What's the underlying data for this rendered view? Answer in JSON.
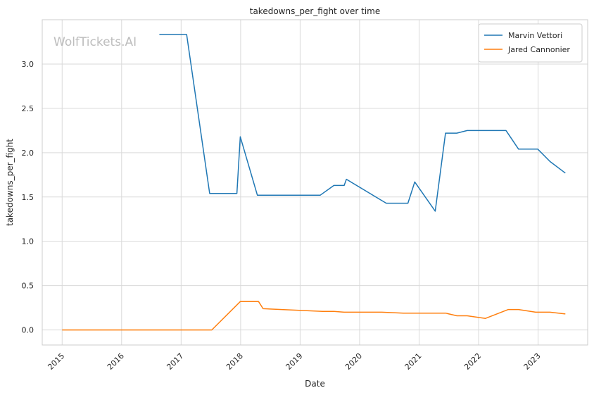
{
  "chart_data": {
    "type": "line",
    "title": "takedowns_per_fight over time",
    "xlabel": "Date",
    "ylabel": "takedowns_per_fight",
    "watermark": "WolfTickets.AI",
    "xlim": [
      "2014-09-01",
      "2023-11-01"
    ],
    "ylim": [
      -0.17,
      3.5
    ],
    "x_ticks": [
      "2015",
      "2016",
      "2017",
      "2018",
      "2019",
      "2020",
      "2021",
      "2022",
      "2023"
    ],
    "y_ticks": [
      "0.0",
      "0.5",
      "1.0",
      "1.5",
      "2.0",
      "2.5",
      "3.0"
    ],
    "grid": true,
    "legend_position": "top-right",
    "series": [
      {
        "name": "Marvin Vettori",
        "color": "#1f77b4",
        "points": [
          [
            "2016-08-20",
            3.333
          ],
          [
            "2017-02-04",
            3.333
          ],
          [
            "2017-06-25",
            1.54
          ],
          [
            "2017-12-09",
            1.54
          ],
          [
            "2017-12-30",
            2.18
          ],
          [
            "2018-04-14",
            1.52
          ],
          [
            "2019-05-04",
            1.52
          ],
          [
            "2019-07-27",
            1.63
          ],
          [
            "2019-09-28",
            1.63
          ],
          [
            "2019-10-12",
            1.7
          ],
          [
            "2020-06-13",
            1.43
          ],
          [
            "2020-10-24",
            1.43
          ],
          [
            "2020-12-05",
            1.67
          ],
          [
            "2021-04-10",
            1.34
          ],
          [
            "2021-06-12",
            2.22
          ],
          [
            "2021-08-20",
            2.22
          ],
          [
            "2021-10-23",
            2.25
          ],
          [
            "2022-06-18",
            2.25
          ],
          [
            "2022-09-03",
            2.04
          ],
          [
            "2022-12-30",
            2.04
          ],
          [
            "2023-03-15",
            1.9
          ],
          [
            "2023-06-17",
            1.77
          ]
        ]
      },
      {
        "name": "Jared Cannonier",
        "color": "#ff7f0e",
        "points": [
          [
            "2015-01-01",
            0.0
          ],
          [
            "2017-07-08",
            0.0
          ],
          [
            "2017-12-30",
            0.32
          ],
          [
            "2018-04-21",
            0.32
          ],
          [
            "2018-05-19",
            0.24
          ],
          [
            "2019-05-18",
            0.21
          ],
          [
            "2019-07-27",
            0.21
          ],
          [
            "2019-09-28",
            0.2
          ],
          [
            "2020-05-16",
            0.2
          ],
          [
            "2020-09-26",
            0.19
          ],
          [
            "2021-06-12",
            0.19
          ],
          [
            "2021-08-21",
            0.16
          ],
          [
            "2021-10-23",
            0.16
          ],
          [
            "2022-02-12",
            0.13
          ],
          [
            "2022-07-02",
            0.23
          ],
          [
            "2022-09-03",
            0.23
          ],
          [
            "2022-12-17",
            0.2
          ],
          [
            "2023-03-15",
            0.2
          ],
          [
            "2023-06-17",
            0.18
          ]
        ]
      }
    ]
  }
}
